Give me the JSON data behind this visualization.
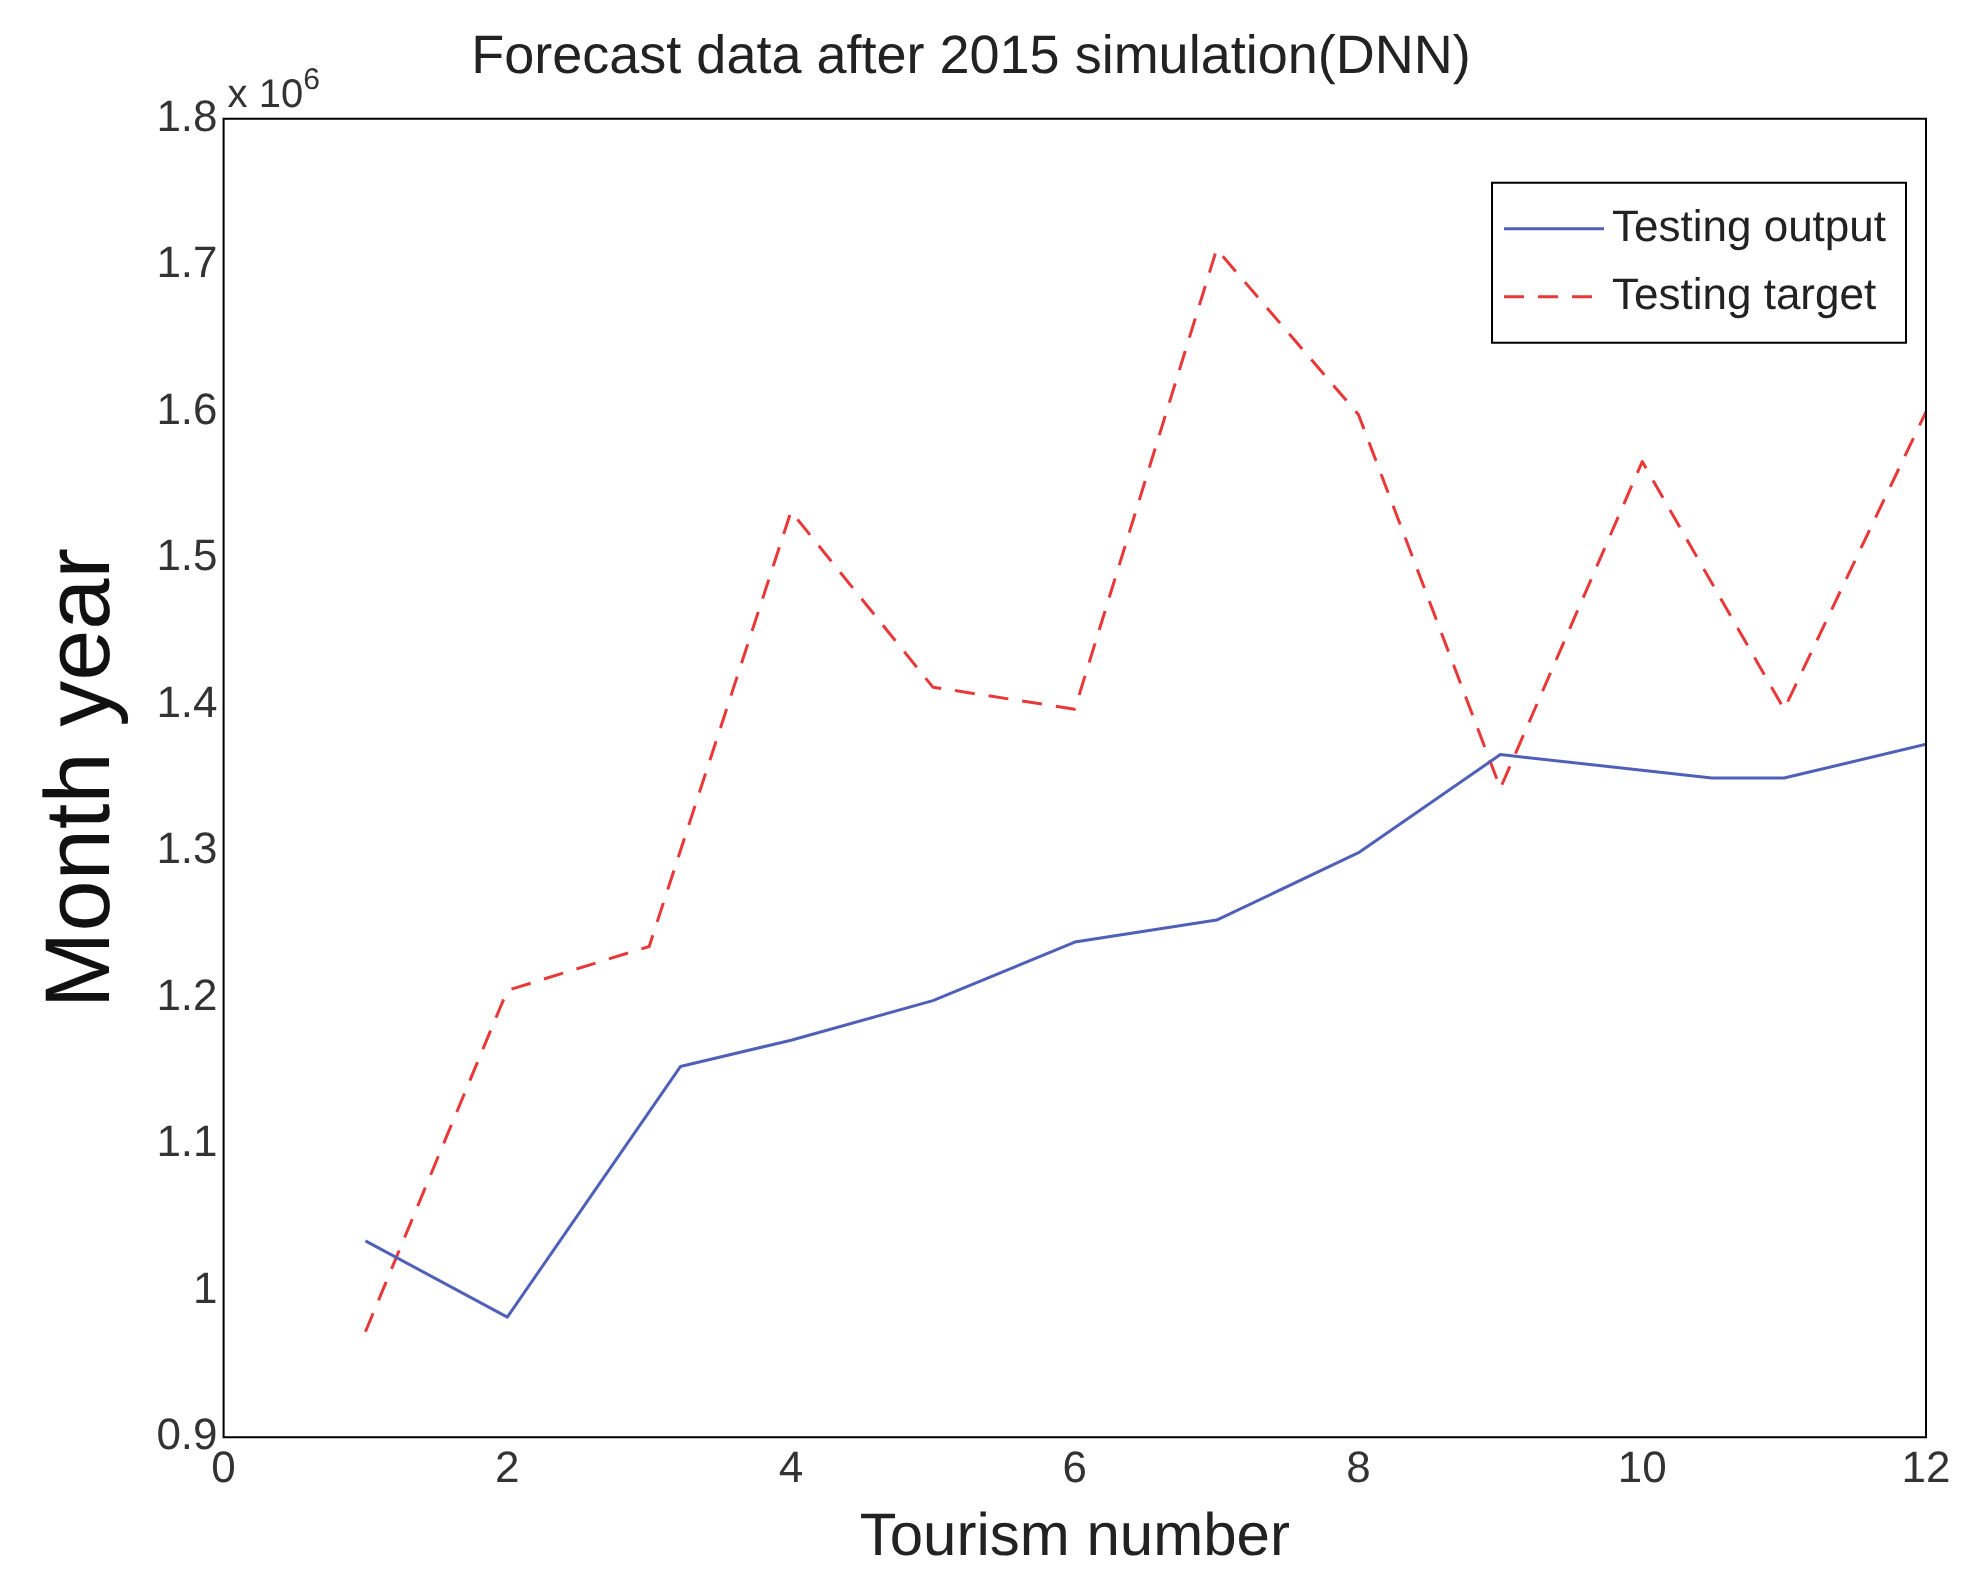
{
  "chart_data": {
    "type": "line",
    "title": "Forecast data after 2015 simulation(DNN)",
    "xlabel": "Tourism number",
    "ylabel": "Month year",
    "annotations": [
      "x 10$^{6}$"
    ],
    "series": [
      {
        "name": "Testing output",
        "color": "#5060b8",
        "line_style": "solid",
        "x": [
          1,
          2,
          3.22,
          4,
          5,
          6,
          7,
          8,
          9,
          10.49,
          11,
          12
        ],
        "values": [
          1.034,
          0.982,
          1.153,
          1.171,
          1.198,
          1.238,
          1.253,
          1.299,
          1.366,
          1.35,
          1.35,
          1.373
        ]
      },
      {
        "name": "Testing target",
        "color": "#e83838",
        "line_style": "dashed",
        "x": [
          1,
          2,
          3,
          4,
          5,
          6,
          7,
          8,
          9,
          10,
          11,
          12
        ],
        "values": [
          0.972,
          1.205,
          1.235,
          1.532,
          1.412,
          1.397,
          1.711,
          1.598,
          1.343,
          1.566,
          1.397,
          1.6
        ]
      }
    ],
    "xlim": [
      0,
      12
    ],
    "xticks": [
      0,
      2,
      4,
      6,
      8,
      10,
      12
    ],
    "ylim": [
      0.9,
      1.8
    ],
    "yticks": [
      0.9,
      1,
      1.1,
      1.2,
      1.3,
      1.4,
      1.5,
      1.6,
      1.7,
      1.8
    ],
    "grid": false,
    "legend": "top right",
    "marker": "none"
  }
}
